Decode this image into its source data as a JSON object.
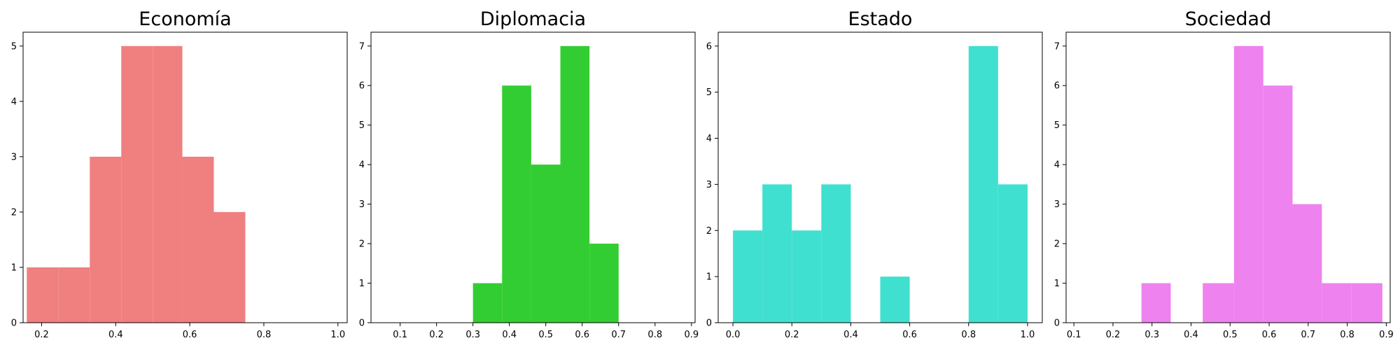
{
  "chart_data": [
    {
      "type": "histogram",
      "title": "Economía",
      "color": "#F08080",
      "xlim": [
        0.15,
        1.025
      ],
      "ylim": [
        0,
        5.25
      ],
      "xticks": [
        "0.2",
        "0.4",
        "0.6",
        "0.8",
        "1.0"
      ],
      "yticks": [
        "0",
        "1",
        "2",
        "3",
        "4",
        "5"
      ],
      "bins": [
        {
          "x0": 0.16,
          "x1": 0.245,
          "count": 1
        },
        {
          "x0": 0.245,
          "x1": 0.33,
          "count": 1
        },
        {
          "x0": 0.33,
          "x1": 0.415,
          "count": 3
        },
        {
          "x0": 0.415,
          "x1": 0.5,
          "count": 5
        },
        {
          "x0": 0.5,
          "x1": 0.58,
          "count": 5
        },
        {
          "x0": 0.58,
          "x1": 0.665,
          "count": 3
        },
        {
          "x0": 0.665,
          "x1": 0.75,
          "count": 2
        }
      ]
    },
    {
      "type": "histogram",
      "title": "Diplomacia",
      "color": "#32CD32",
      "xlim": [
        0.02,
        0.91
      ],
      "ylim": [
        0,
        7.35
      ],
      "xticks": [
        "0.1",
        "0.2",
        "0.3",
        "0.4",
        "0.5",
        "0.6",
        "0.7",
        "0.8",
        "0.9"
      ],
      "yticks": [
        "0",
        "1",
        "2",
        "3",
        "4",
        "5",
        "6",
        "7"
      ],
      "bins": [
        {
          "x0": 0.3,
          "x1": 0.38,
          "count": 1
        },
        {
          "x0": 0.38,
          "x1": 0.46,
          "count": 6
        },
        {
          "x0": 0.46,
          "x1": 0.54,
          "count": 4
        },
        {
          "x0": 0.54,
          "x1": 0.62,
          "count": 7
        },
        {
          "x0": 0.62,
          "x1": 0.7,
          "count": 2
        }
      ]
    },
    {
      "type": "histogram",
      "title": "Estado",
      "color": "#40E0D0",
      "xlim": [
        -0.05,
        1.05
      ],
      "ylim": [
        0,
        6.3
      ],
      "xticks": [
        "0.0",
        "0.2",
        "0.4",
        "0.6",
        "0.8",
        "1.0"
      ],
      "yticks": [
        "0",
        "1",
        "2",
        "3",
        "4",
        "5",
        "6"
      ],
      "bins": [
        {
          "x0": 0.0,
          "x1": 0.1,
          "count": 2
        },
        {
          "x0": 0.1,
          "x1": 0.2,
          "count": 3
        },
        {
          "x0": 0.2,
          "x1": 0.3,
          "count": 2
        },
        {
          "x0": 0.3,
          "x1": 0.4,
          "count": 3
        },
        {
          "x0": 0.5,
          "x1": 0.6,
          "count": 1
        },
        {
          "x0": 0.8,
          "x1": 0.9,
          "count": 6
        },
        {
          "x0": 0.9,
          "x1": 1.0,
          "count": 3
        }
      ]
    },
    {
      "type": "histogram",
      "title": "Sociedad",
      "color": "#EE82EE",
      "xlim": [
        0.08,
        0.91
      ],
      "ylim": [
        0,
        7.35
      ],
      "xticks": [
        "0.1",
        "0.2",
        "0.3",
        "0.4",
        "0.5",
        "0.6",
        "0.7",
        "0.8",
        "0.9"
      ],
      "yticks": [
        "0",
        "1",
        "2",
        "3",
        "4",
        "5",
        "6",
        "7"
      ],
      "bins": [
        {
          "x0": 0.273,
          "x1": 0.348,
          "count": 1
        },
        {
          "x0": 0.43,
          "x1": 0.51,
          "count": 1
        },
        {
          "x0": 0.51,
          "x1": 0.585,
          "count": 7
        },
        {
          "x0": 0.585,
          "x1": 0.66,
          "count": 6
        },
        {
          "x0": 0.66,
          "x1": 0.735,
          "count": 3
        },
        {
          "x0": 0.735,
          "x1": 0.81,
          "count": 1
        },
        {
          "x0": 0.81,
          "x1": 0.89,
          "count": 1
        }
      ]
    }
  ]
}
